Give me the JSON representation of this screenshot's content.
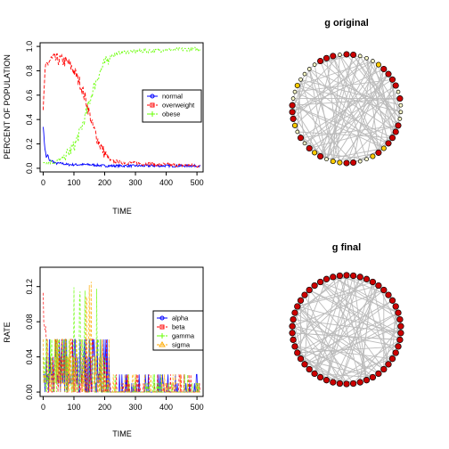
{
  "chart_data": [
    {
      "type": "line",
      "xlabel": "TIME",
      "ylabel": "PERCENT OF POPULATION",
      "xlim": [
        -10,
        520
      ],
      "ylim": [
        -0.03,
        1.03
      ],
      "xticks": [
        0,
        100,
        200,
        300,
        400,
        500
      ],
      "yticks": [
        0.0,
        0.2,
        0.4,
        0.6,
        0.8,
        1.0
      ],
      "legend": "right",
      "series": [
        {
          "name": "normal",
          "color": "#0000ff",
          "x": [
            0,
            5,
            10,
            15,
            20,
            30,
            40,
            60,
            80,
            100,
            150,
            200,
            500
          ],
          "y": [
            0.35,
            0.18,
            0.09,
            0.11,
            0.06,
            0.06,
            0.04,
            0.04,
            0.03,
            0.03,
            0.03,
            0.02,
            0.02
          ]
        },
        {
          "name": "overweight",
          "color": "#ff0000",
          "x": [
            0,
            5,
            10,
            20,
            30,
            50,
            80,
            100,
            120,
            140,
            160,
            180,
            200,
            220,
            250,
            300,
            400,
            500
          ],
          "y": [
            0.45,
            0.75,
            0.84,
            0.88,
            0.9,
            0.89,
            0.87,
            0.8,
            0.7,
            0.55,
            0.35,
            0.22,
            0.12,
            0.06,
            0.05,
            0.04,
            0.03,
            0.02
          ]
        },
        {
          "name": "obese",
          "color": "#66ff00",
          "x": [
            0,
            10,
            20,
            30,
            40,
            60,
            80,
            100,
            120,
            140,
            160,
            180,
            200,
            220,
            250,
            300,
            400,
            500
          ],
          "y": [
            0.05,
            0.05,
            0.05,
            0.05,
            0.05,
            0.08,
            0.12,
            0.18,
            0.3,
            0.45,
            0.63,
            0.77,
            0.86,
            0.92,
            0.95,
            0.96,
            0.97,
            0.98
          ]
        }
      ]
    },
    {
      "type": "line",
      "xlabel": "TIME",
      "ylabel": "RATE",
      "xlim": [
        -10,
        520
      ],
      "ylim": [
        -0.005,
        0.142
      ],
      "xticks": [
        0,
        100,
        200,
        300,
        400,
        500
      ],
      "yticks": [
        "0.00",
        "0.04",
        "0.08",
        "0.12"
      ],
      "ytick_values": [
        0.0,
        0.04,
        0.08,
        0.12
      ],
      "legend": "right",
      "series": [
        {
          "name": "alpha",
          "color": "#0000ff"
        },
        {
          "name": "beta",
          "color": "#ff0000"
        },
        {
          "name": "gamma",
          "color": "#66ff00"
        },
        {
          "name": "sigma",
          "color": "#ffaa00"
        }
      ]
    }
  ],
  "networks": [
    {
      "title": "g original",
      "node_colors": [
        "#cc0000",
        "#ffcc00",
        "#ffffcc"
      ]
    },
    {
      "title": "g final",
      "node_colors": [
        "#cc0000"
      ]
    }
  ]
}
